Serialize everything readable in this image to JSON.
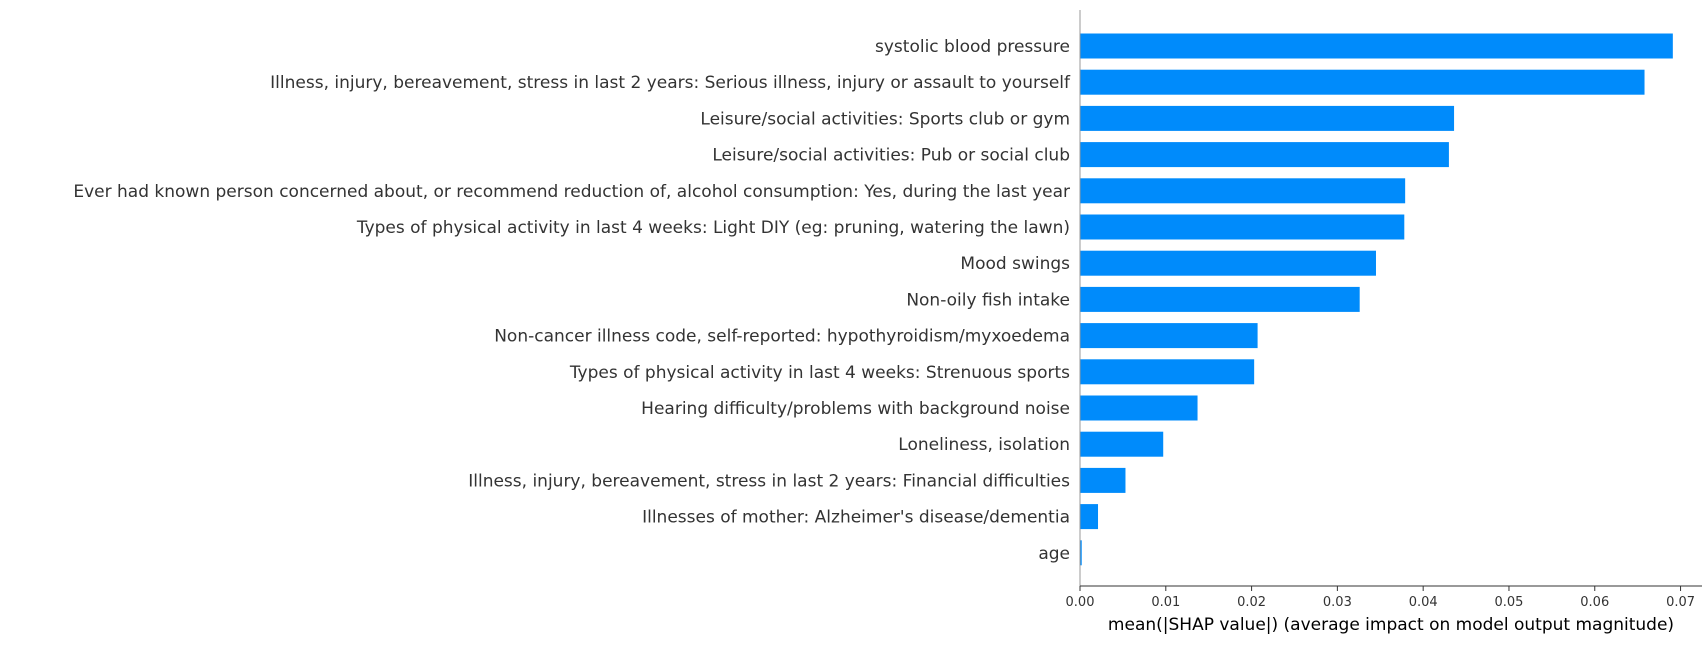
{
  "chart_data": {
    "type": "bar",
    "orientation": "horizontal",
    "title": "",
    "xlabel": "mean(|SHAP value|) (average impact on model output magnitude)",
    "ylabel": "",
    "xlim": [
      0,
      0.0725
    ],
    "xticks": [
      0,
      0.01,
      0.02,
      0.03,
      0.04,
      0.05,
      0.06,
      0.07
    ],
    "xtick_labels": [
      "0.00",
      "0.01",
      "0.02",
      "0.03",
      "0.04",
      "0.05",
      "0.06",
      "0.07"
    ],
    "grid": false,
    "bar_color": "#008bfb",
    "categories": [
      "systolic blood pressure",
      "Illness, injury, bereavement, stress in last 2 years: Serious illness, injury or assault to yourself",
      "Leisure/social activities: Sports club or gym",
      "Leisure/social activities: Pub or social club",
      "Ever had known person concerned about, or recommend reduction of, alcohol consumption: Yes, during the last year",
      "Types of physical activity in last 4 weeks: Light DIY (eg: pruning, watering the lawn)",
      "Mood swings",
      "Non-oily fish intake",
      "Non-cancer illness code, self-reported: hypothyroidism/myxoedema",
      "Types of physical activity in last 4 weeks: Strenuous sports",
      "Hearing difficulty/problems with background noise",
      "Loneliness, isolation",
      "Illness, injury, bereavement, stress in last 2 years: Financial difficulties",
      "Illnesses of mother: Alzheimer's disease/dementia",
      "age"
    ],
    "values": [
      0.0691,
      0.0658,
      0.0436,
      0.043,
      0.0379,
      0.0378,
      0.0345,
      0.0326,
      0.0207,
      0.0203,
      0.0137,
      0.0097,
      0.0053,
      0.0021,
      0.0002
    ]
  }
}
